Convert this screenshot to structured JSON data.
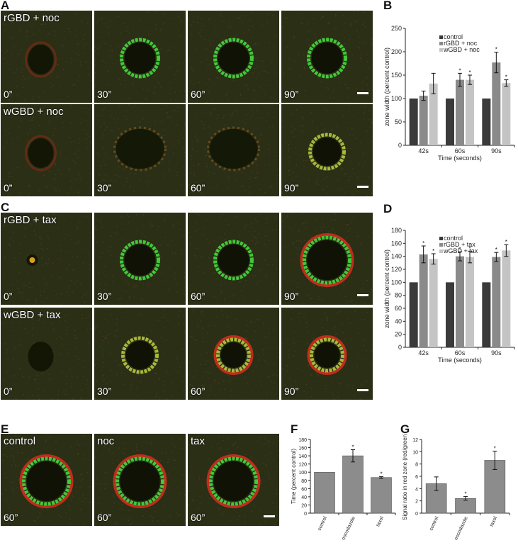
{
  "panels": {
    "A": "A",
    "B": "B",
    "C": "C",
    "D": "D",
    "E": "E",
    "F": "F",
    "G": "G"
  },
  "micrographs": {
    "rows": [
      {
        "label": "rGBD + noc",
        "times": [
          "0”",
          "30”",
          "60”",
          "90”"
        ],
        "style": [
          "none-r",
          "ring-g",
          "ring-g",
          "ring-g"
        ]
      },
      {
        "label": "wGBD + noc",
        "times": [
          "0”",
          "30”",
          "60”",
          "90”"
        ],
        "style": [
          "none-r",
          "diffuse",
          "diffuse",
          "ring-y"
        ]
      },
      {
        "label": "rGBD + tax",
        "times": [
          "0”",
          "30”",
          "60”",
          "90”"
        ],
        "style": [
          "star",
          "ring-g",
          "ring-g",
          "ring-gr"
        ]
      },
      {
        "label": "wGBD + tax",
        "times": [
          "0”",
          "30”",
          "60”",
          "90”"
        ],
        "style": [
          "none-dark",
          "ring-y",
          "ring-yr",
          "ring-yr"
        ]
      }
    ],
    "e_row": [
      {
        "label": "control",
        "time": "60”"
      },
      {
        "label": "noc",
        "time": "60”"
      },
      {
        "label": "tax",
        "time": "60”"
      }
    ]
  },
  "chart_data": [
    {
      "id": "B",
      "type": "bar",
      "ylabel": "zone width (percent control)",
      "xlabel": "Time (seconds)",
      "ylim": [
        0,
        250
      ],
      "yticks": [
        0,
        50,
        100,
        150,
        200,
        250
      ],
      "categories": [
        "42s",
        "60s",
        "90s"
      ],
      "legend": "top-right",
      "series": [
        {
          "name": "control",
          "color": "#3a3a3a",
          "values": [
            100,
            100,
            100
          ],
          "errors": [
            0,
            0,
            0
          ],
          "stars": [
            false,
            false,
            false
          ]
        },
        {
          "name": "rGBD + noc",
          "color": "#8a8a8a",
          "values": [
            106,
            140,
            177
          ],
          "errors": [
            10,
            14,
            22
          ],
          "stars": [
            false,
            true,
            true
          ]
        },
        {
          "name": "wGBD + noc",
          "color": "#c4c4c4",
          "values": [
            132,
            140,
            133
          ],
          "errors": [
            22,
            10,
            7
          ],
          "stars": [
            false,
            true,
            true
          ]
        }
      ]
    },
    {
      "id": "D",
      "type": "bar",
      "ylabel": "zone width (percent control)",
      "xlabel": "Time (seconds)",
      "ylim": [
        0,
        180
      ],
      "yticks": [
        0,
        20,
        40,
        60,
        80,
        100,
        120,
        140,
        160,
        180
      ],
      "categories": [
        "42s",
        "60s",
        "90s"
      ],
      "legend": "top-right",
      "series": [
        {
          "name": "control",
          "color": "#3a3a3a",
          "values": [
            100,
            100,
            100
          ],
          "errors": [
            0,
            0,
            0
          ],
          "stars": [
            false,
            false,
            false
          ]
        },
        {
          "name": "rGBD + tax",
          "color": "#8a8a8a",
          "values": [
            143,
            140,
            139
          ],
          "errors": [
            13,
            7,
            7
          ],
          "stars": [
            true,
            true,
            true
          ]
        },
        {
          "name": "wGBD + tax",
          "color": "#c4c4c4",
          "values": [
            136,
            139,
            149
          ],
          "errors": [
            8,
            9,
            9
          ],
          "stars": [
            true,
            true,
            true
          ]
        }
      ]
    },
    {
      "id": "F",
      "type": "bar",
      "ylabel": "Time (percent control)",
      "ylim": [
        0,
        180
      ],
      "yticks": [
        0,
        20,
        40,
        60,
        80,
        100,
        120,
        140,
        160,
        180
      ],
      "categories": [
        "control",
        "nocodazole",
        "taxol"
      ],
      "series": [
        {
          "name": "",
          "color": "#8c8c8c",
          "values": [
            100,
            140,
            87
          ],
          "errors": [
            0,
            15,
            2
          ],
          "stars": [
            false,
            true,
            true
          ]
        }
      ]
    },
    {
      "id": "G",
      "type": "bar",
      "ylabel": "Signal ratio in red zone (red/green)",
      "ylim": [
        0,
        12
      ],
      "yticks": [
        0,
        2,
        4,
        6,
        8,
        10,
        12
      ],
      "categories": [
        "control",
        "nocodazole",
        "taxol"
      ],
      "series": [
        {
          "name": "",
          "color": "#8c8c8c",
          "values": [
            4.8,
            2.4,
            8.6
          ],
          "errors": [
            1.1,
            0.3,
            1.5
          ],
          "stars": [
            false,
            true,
            true
          ]
        }
      ]
    }
  ],
  "colors": {
    "red_signal": "#cc2a1c",
    "green_signal": "#3cc43a",
    "background": "#262d13"
  }
}
